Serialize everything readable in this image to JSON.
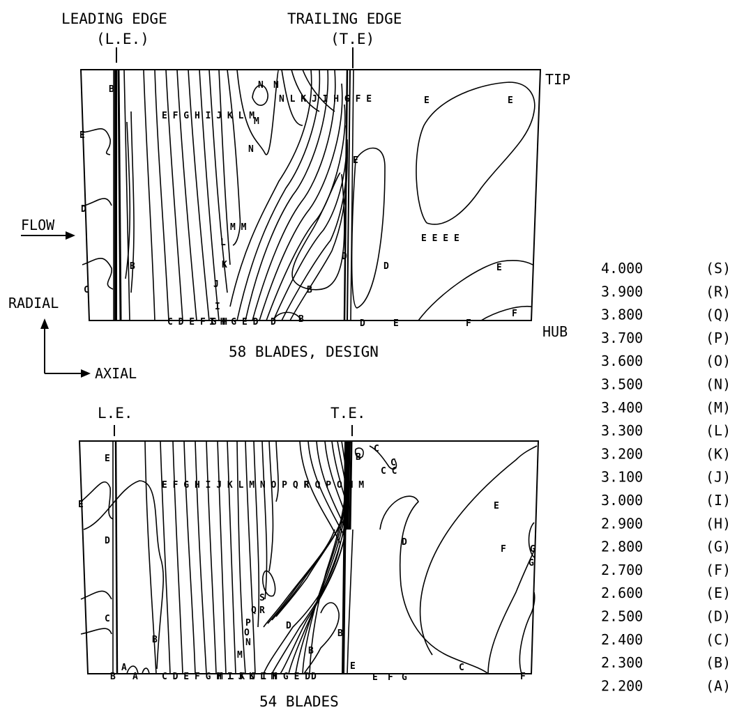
{
  "figure": {
    "edge_labels": {
      "leading_edge": "LEADING EDGE",
      "leading_edge_abbr": "(L.E.)",
      "trailing_edge": "TRAILING EDGE",
      "trailing_edge_abbr": "(T.E)",
      "le_short": "L.E.",
      "te_short": "T.E."
    },
    "span_labels": {
      "tip": "TIP",
      "hub": "HUB"
    },
    "direction_labels": {
      "flow": "FLOW",
      "radial": "RADIAL",
      "axial": "AXIAL"
    },
    "panels": [
      {
        "caption": "58 BLADES, DESIGN",
        "inline_labels": {
          "top_row": "E F G H I J K L M",
          "top_right_row": "N L K J I H G F E",
          "bottom_row": "C D E F G H",
          "bottom_mid": "I H G E D",
          "hub_d": "D",
          "hub_b": "B",
          "hub_d2": "D",
          "hub_e": "E",
          "hub_f": "F",
          "hub_f2": "F",
          "mid_b": "B",
          "mid_d": "D",
          "mid_d2": "D",
          "wake_e": "E",
          "right_e": "E",
          "right_e2": "E",
          "right_ee": "E E E E",
          "right_e3": "E",
          "left_e": "E",
          "left_d": "D",
          "left_b": "B",
          "left_b2": "B",
          "left_c": "C",
          "core_m": "M M",
          "core_n": "N",
          "core_n2": "N",
          "core_m2": "M",
          "core_n3": "N",
          "core_l": "L",
          "core_k": "K",
          "core_j": "J",
          "core_i": "I"
        }
      },
      {
        "caption": "54 BLADES",
        "inline_labels": {
          "top_row": "E F G H I J K L M N O P Q R",
          "top_right_row": "R Q P O N M",
          "bottom_row": "C D E F G H I J K L M",
          "bottom_mid": "M L K J I H G E D",
          "hub_a": "A",
          "hub_a2": "A",
          "hub_b": "B",
          "hub_d": "D",
          "hub_e": "E",
          "hub_e2": "E",
          "hub_f": "F",
          "hub_g": "G",
          "hub_c": "C",
          "hub_f2": "F",
          "mid_d": "D",
          "mid_b": "B",
          "mid_b2": "B",
          "mid_e": "E",
          "mid_f": "F",
          "mid_g": "G",
          "mid_g2": "G",
          "left_e": "E",
          "left_e2": "E",
          "left_d": "D",
          "left_c": "C",
          "left_b": "B",
          "wake_b": "B",
          "wake_d": "D",
          "wake_c": "C",
          "wake_cc": "C C",
          "wake_c2": "C",
          "core_s": "S",
          "core_q": "Q",
          "core_p": "P",
          "core_o": "O",
          "core_n": "N",
          "core_m": "M",
          "core_r": "R"
        }
      }
    ],
    "legend": [
      {
        "value": "4.000",
        "code": "(S)"
      },
      {
        "value": "3.900",
        "code": "(R)"
      },
      {
        "value": "3.800",
        "code": "(Q)"
      },
      {
        "value": "3.700",
        "code": "(P)"
      },
      {
        "value": "3.600",
        "code": "(O)"
      },
      {
        "value": "3.500",
        "code": "(N)"
      },
      {
        "value": "3.400",
        "code": "(M)"
      },
      {
        "value": "3.300",
        "code": "(L)"
      },
      {
        "value": "3.200",
        "code": "(K)"
      },
      {
        "value": "3.100",
        "code": "(J)"
      },
      {
        "value": "3.000",
        "code": "(I)"
      },
      {
        "value": "2.900",
        "code": "(H)"
      },
      {
        "value": "2.800",
        "code": "(G)"
      },
      {
        "value": "2.700",
        "code": "(F)"
      },
      {
        "value": "2.600",
        "code": "(E)"
      },
      {
        "value": "2.500",
        "code": "(D)"
      },
      {
        "value": "2.400",
        "code": "(C)"
      },
      {
        "value": "2.300",
        "code": "(B)"
      },
      {
        "value": "2.200",
        "code": "(A)"
      }
    ]
  }
}
